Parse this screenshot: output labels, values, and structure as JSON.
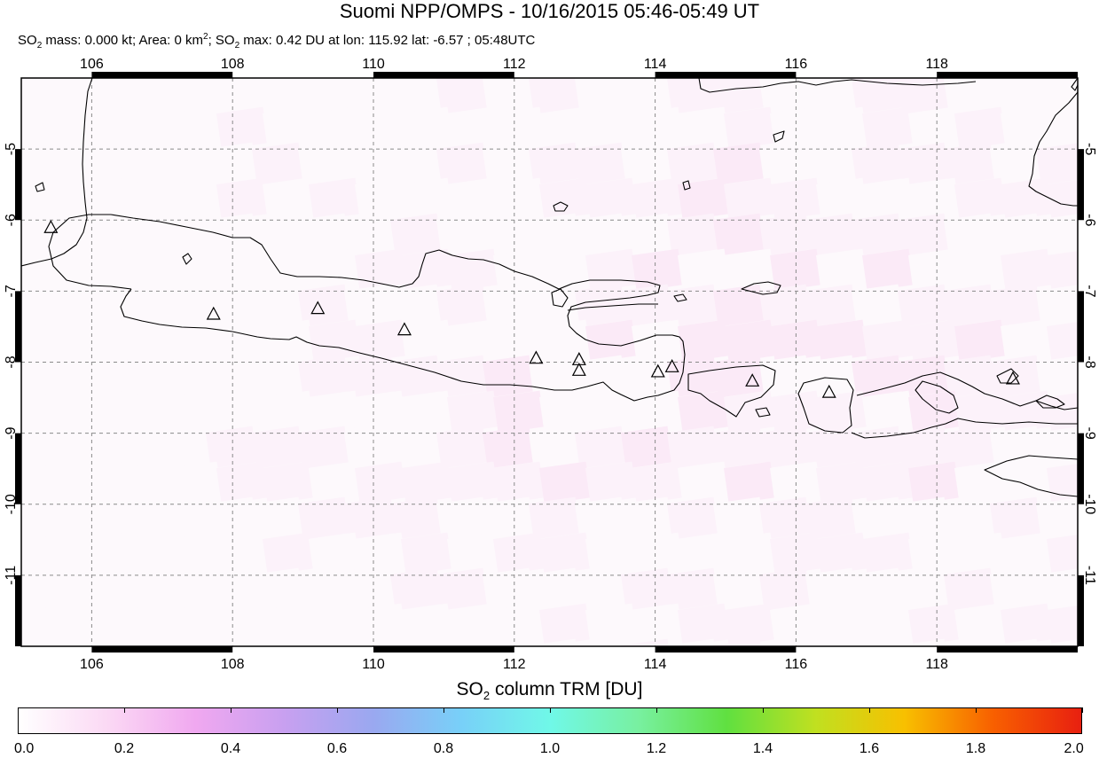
{
  "header": {
    "title": "Suomi NPP/OMPS - 10/16/2015 05:46-05:49 UT",
    "subtitle_mass_prefix": "SO",
    "subtitle_mass": " mass: 0.000 kt; Area: 0 km",
    "subtitle_max_prefix": "; SO",
    "subtitle_max": " max: 0.42 DU at lon: 115.92 lat: -6.57 ; 05:48UTC",
    "sub_two": "2",
    "sup_two": "2"
  },
  "map": {
    "lon_range": [
      105.0,
      120.0
    ],
    "lat_range": [
      -12.0,
      -4.0
    ],
    "lon_ticks": [
      "106",
      "108",
      "110",
      "112",
      "114",
      "116",
      "118"
    ],
    "lat_ticks": [
      "-5",
      "-6",
      "-7",
      "-8",
      "-9",
      "-10",
      "-11"
    ],
    "gridlines": "dashed",
    "volcano_marker": "triangle-icon",
    "volcanoes": [
      [
        105.42,
        -6.1
      ],
      [
        107.73,
        -7.32
      ],
      [
        109.21,
        -7.24
      ],
      [
        110.44,
        -7.54
      ],
      [
        112.31,
        -7.94
      ],
      [
        112.92,
        -7.96
      ],
      [
        112.92,
        -8.11
      ],
      [
        114.04,
        -8.13
      ],
      [
        114.24,
        -8.06
      ],
      [
        115.38,
        -8.26
      ],
      [
        116.47,
        -8.42
      ],
      [
        119.08,
        -8.23
      ]
    ],
    "colors": {
      "frame": "#000000",
      "grid": "#8a8a8a",
      "background": "#fdf9fc",
      "so2_low": "#fbe3f6",
      "so2_mid": "#f4c6f0"
    }
  },
  "colorbar": {
    "title_prefix": "SO",
    "title_sub": "2",
    "title_suffix": " column TRM [DU]",
    "tick_labels": [
      "0.0",
      "0.2",
      "0.4",
      "0.6",
      "0.8",
      "1.0",
      "1.2",
      "1.4",
      "1.6",
      "1.8",
      "2.0"
    ],
    "range": [
      0.0,
      2.0
    ],
    "colors": [
      "#ffffff",
      "#fbd9f4",
      "#f0a8f0",
      "#c8a0f0",
      "#9aa8f0",
      "#78d0f8",
      "#70f8e8",
      "#78f0a0",
      "#60e040",
      "#c0e020",
      "#f8c000",
      "#f86000",
      "#e82010"
    ]
  }
}
